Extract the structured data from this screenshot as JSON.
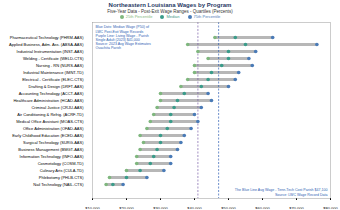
{
  "chart_data": {
    "type": "range",
    "orientation": "horizontal",
    "title": "Northeastern Louisiana Wages by Program",
    "subtitle": "Five-Year Data - Post-Exit Wage Ranges - Quartiles (Percents)",
    "categories": [
      "Pharmaceutical Technology (PHRM-AAS)",
      "Applied Business, Adm. Ass. (ABSA-AAS)",
      "Industrial Instrumentation (INST-AAS)",
      "Welding - Certificate (WELD-CTS)",
      "Nursing - RN (NURS-AAS)",
      "Industrial Maintenance (IMNT-TD)",
      "Electrical - Certificate (ELEC-CTS)",
      "Drafting & Design (DRFT-AAS)",
      "Accounting Technology (ACCT-AAS)",
      "Healthcare Administration (HCAD-AAS)",
      "Criminal Justice (CRJU-AAS)",
      "Air Conditioning & Refrig. (ACRF-TD)",
      "Medical Office Assistant (MOAS-CTS)",
      "Office Administration (OFAD-AAS)",
      "Early Childhood Education (ECED-AAS)",
      "Surgical Technology (SURG-AAS)",
      "Business Management (BMGT-AAS)",
      "Information Technology (INFO-AAS)",
      "Cosmetology (COSM-TD)",
      "Culinary Arts (CULA-TD)",
      "Phlebotomy (PHLB-CTS)",
      "Nail Technology (NAIL-CTS)"
    ],
    "series": [
      {
        "name": "25th Percentile",
        "color": "#7fb77e",
        "values": [
          46000,
          38000,
          41000,
          44000,
          40000,
          40000,
          38000,
          36000,
          30000,
          30000,
          29000,
          28000,
          27000,
          26000,
          24000,
          25000,
          24000,
          23000,
          23000,
          20000,
          15000,
          14000
        ]
      },
      {
        "name": "Median",
        "color": "#3a9c8a",
        "values": [
          52000,
          55000,
          50000,
          50000,
          48000,
          45000,
          44000,
          42000,
          37000,
          35000,
          34000,
          33000,
          33000,
          32000,
          30000,
          30000,
          29000,
          28000,
          27000,
          24000,
          20000,
          16000
        ]
      },
      {
        "name": "75th Percentile",
        "color": "#4a7bb7",
        "values": [
          63000,
          76000,
          58000,
          56000,
          57000,
          53000,
          52000,
          50000,
          44000,
          45000,
          42000,
          40000,
          41000,
          39000,
          37000,
          36000,
          35000,
          33000,
          33000,
          31000,
          26000,
          19000
        ]
      }
    ],
    "bar_color": "#b7b7b7",
    "reference_lines": [
      {
        "value": 41000,
        "color": "#7b5ea7"
      },
      {
        "value": 47100,
        "color": "#2f5fb3"
      }
    ],
    "annotations_top": [
      "Blue Dots: Median Wage (P50) of",
      "LWC Post-Exit Wage Records",
      "Purple Line: Living Wage - Parish",
      "Single Adult (2023) $41,000",
      "Source: 2023 Avg Wage Estimates",
      "Ouachita Parish"
    ],
    "annotations_bottom": [
      "The Blue Line Avg Wage - Tenn-Tech Cost Parish $47,100",
      "Source: LWC Wage Record Data"
    ],
    "annotation_color": "#2f5fb3",
    "xlim": [
      10000,
      80000
    ],
    "xticks": [
      {
        "value": 10000,
        "label": "$10,000"
      },
      {
        "value": 20000,
        "label": "$20,000"
      },
      {
        "value": 30000,
        "label": "$30,000"
      },
      {
        "value": 40000,
        "label": "$40,000"
      },
      {
        "value": 50000,
        "label": "$50,000"
      },
      {
        "value": 60000,
        "label": "$60,000"
      },
      {
        "value": 70000,
        "label": "$70,000"
      },
      {
        "value": 80000,
        "label": "$80,000"
      }
    ],
    "grid": false
  }
}
